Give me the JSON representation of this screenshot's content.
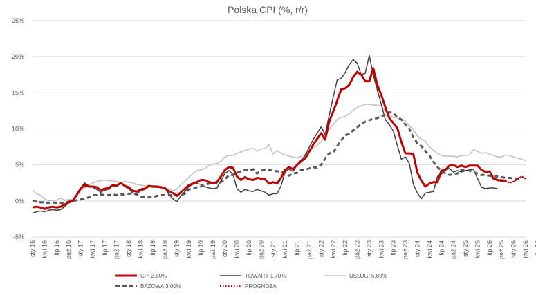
{
  "chart_data": {
    "type": "line",
    "title": "Polska CPI (%, r/r)",
    "xlabel": "",
    "ylabel": "",
    "ylim": [
      -5,
      25
    ],
    "y_ticks": [
      -5,
      0,
      5,
      10,
      15,
      20,
      25
    ],
    "y_tick_labels": [
      "-5%",
      "0%",
      "5%",
      "10%",
      "15%",
      "20%",
      "25%"
    ],
    "x_start": "2016-01",
    "x_months": 124,
    "x_tick_labels": [
      "sty 16",
      "kwi 16",
      "lip 16",
      "paź 16",
      "sty 17",
      "kwi 17",
      "lip 17",
      "paź 17",
      "sty 18",
      "kwi 18",
      "lip 18",
      "paź 18",
      "sty 19",
      "kwi 19",
      "lip 19",
      "paź 19",
      "sty 20",
      "kwi 20",
      "lip 20",
      "paź 20",
      "sty 21",
      "kwi 21",
      "lip 21",
      "paź 21",
      "sty 22",
      "kwi 22",
      "lip 22",
      "paź 22",
      "sty 23",
      "kwi 23",
      "lip 23",
      "paź 23",
      "sty 24",
      "kwi 24",
      "lip 24",
      "paź 24",
      "sty 25",
      "kwi 25",
      "lip 25",
      "paź 25",
      "sty 26",
      "kwi 26",
      "lip 26"
    ],
    "grid": true,
    "legend_position": "bottom",
    "colors": {
      "cpi": "#c00000",
      "towary": "#404040",
      "uslugi": "#bfbfbf",
      "bazowa": "#595959",
      "prognoza": "#c00000",
      "grid": "#d9d9d9",
      "text": "#595959"
    },
    "series": [
      {
        "name": "CPI 2,80%",
        "key": "cpi",
        "start_index": 0,
        "values": [
          -0.9,
          -0.8,
          -0.9,
          -1.1,
          -0.9,
          -0.8,
          -0.9,
          -0.8,
          -0.5,
          -0.2,
          0.0,
          0.8,
          1.7,
          2.2,
          2.0,
          2.0,
          1.9,
          1.5,
          1.7,
          1.8,
          2.2,
          2.1,
          2.5,
          2.1,
          1.9,
          1.4,
          1.3,
          1.6,
          1.7,
          2.1,
          2.0,
          2.0,
          1.9,
          1.8,
          1.3,
          1.1,
          0.7,
          1.2,
          1.7,
          2.2,
          2.4,
          2.6,
          2.9,
          2.9,
          2.6,
          2.5,
          2.6,
          3.4,
          4.3,
          4.7,
          4.6,
          3.4,
          2.9,
          3.3,
          3.0,
          2.9,
          3.2,
          3.1,
          3.0,
          2.4,
          2.6,
          2.4,
          3.2,
          4.3,
          4.7,
          4.4,
          5.0,
          5.5,
          5.9,
          6.8,
          7.8,
          8.6,
          9.4,
          8.5,
          11.0,
          12.4,
          13.9,
          15.5,
          15.6,
          16.1,
          17.2,
          17.9,
          17.5,
          16.6,
          16.6,
          18.4,
          16.1,
          14.7,
          13.0,
          11.5,
          10.8,
          10.1,
          8.2,
          6.6,
          6.6,
          6.5,
          3.9,
          2.8,
          2.0,
          2.4,
          2.6,
          2.6,
          4.2,
          4.3,
          4.9,
          5.0,
          4.7,
          4.9,
          4.7,
          4.9,
          4.9,
          4.9,
          4.3,
          4.0,
          4.1,
          3.1,
          2.9,
          2.8,
          2.8
        ]
      },
      {
        "name": "TOWARY 1,70%",
        "key": "towary",
        "start_index": 0,
        "values": [
          -1.7,
          -1.5,
          -1.4,
          -1.5,
          -1.3,
          -1.2,
          -1.3,
          -1.2,
          -0.8,
          -0.3,
          0.0,
          0.8,
          1.8,
          2.5,
          2.1,
          1.9,
          1.6,
          1.2,
          1.5,
          1.6,
          2.1,
          2.0,
          2.6,
          2.0,
          1.7,
          1.1,
          1.0,
          1.4,
          1.6,
          2.0,
          1.9,
          1.9,
          1.9,
          1.8,
          0.9,
          0.3,
          -0.1,
          0.7,
          1.3,
          2.0,
          2.3,
          2.4,
          2.3,
          2.0,
          1.8,
          1.7,
          1.8,
          2.8,
          3.8,
          4.2,
          3.7,
          1.7,
          1.2,
          1.6,
          1.4,
          1.3,
          1.6,
          1.4,
          1.2,
          0.8,
          1.0,
          1.0,
          2.1,
          4.0,
          4.4,
          4.1,
          5.0,
          5.7,
          6.3,
          7.4,
          8.5,
          9.4,
          10.3,
          9.2,
          11.9,
          14.4,
          16.8,
          17.0,
          17.8,
          18.9,
          19.6,
          19.1,
          17.5,
          17.7,
          20.2,
          17.5,
          15.4,
          13.4,
          11.3,
          10.6,
          9.7,
          7.7,
          5.8,
          6.1,
          5.2,
          2.3,
          1.1,
          0.3,
          1.1,
          1.2,
          1.3,
          3.4,
          3.7,
          4.3,
          4.5,
          4.0,
          4.2,
          4.0,
          4.2,
          4.3,
          4.4,
          3.1,
          1.9,
          1.7,
          1.8,
          1.8,
          1.7
        ]
      },
      {
        "name": "USŁUGI 5,60%",
        "key": "uslugi",
        "start_index": 0,
        "values": [
          1.5,
          1.0,
          0.8,
          0.3,
          0.0,
          0.1,
          0.1,
          0.4,
          0.1,
          0.2,
          0.2,
          0.8,
          1.4,
          1.8,
          2.2,
          2.5,
          2.7,
          2.8,
          2.9,
          2.8,
          2.8,
          2.7,
          2.6,
          2.7,
          2.6,
          2.5,
          2.3,
          2.2,
          2.1,
          2.1,
          2.1,
          2.1,
          2.0,
          1.8,
          1.6,
          1.4,
          1.6,
          2.3,
          2.7,
          3.3,
          3.8,
          4.2,
          4.3,
          4.5,
          4.9,
          5.1,
          5.2,
          5.5,
          6.1,
          6.3,
          6.3,
          6.6,
          6.8,
          7.0,
          7.2,
          7.3,
          6.9,
          7.2,
          7.3,
          7.8,
          6.5,
          7.0,
          6.6,
          6.4,
          6.2,
          6.1,
          6.0,
          6.2,
          6.5,
          7.1,
          7.4,
          7.7,
          8.2,
          9.3,
          10.0,
          10.6,
          11.3,
          11.6,
          11.7,
          12.1,
          12.6,
          13.0,
          13.2,
          13.4,
          13.4,
          13.3,
          13.3,
          13.2,
          12.5,
          12.0,
          11.6,
          11.5,
          11.3,
          11.1,
          10.4,
          9.9,
          9.0,
          8.6,
          8.3,
          7.5,
          7.0,
          6.6,
          6.3,
          6.2,
          6.2,
          6.2,
          6.1,
          6.3,
          6.3,
          6.4,
          7.1,
          6.9,
          6.6,
          6.7,
          6.5,
          6.3,
          6.1,
          6.1,
          6.4,
          6.3,
          6.1,
          5.9,
          5.8,
          5.6
        ]
      },
      {
        "name": "BAZOWA 3,00%",
        "key": "bazowa",
        "start_index": 0,
        "values": [
          0.0,
          -0.1,
          -0.2,
          -0.2,
          -0.3,
          -0.2,
          -0.3,
          -0.3,
          -0.2,
          -0.1,
          0.0,
          0.1,
          0.2,
          0.3,
          0.5,
          0.8,
          0.8,
          0.9,
          0.8,
          0.8,
          0.9,
          0.8,
          0.9,
          0.9,
          1.0,
          1.0,
          0.9,
          0.6,
          0.5,
          0.5,
          0.5,
          0.7,
          0.8,
          0.8,
          0.8,
          0.8,
          0.8,
          0.8,
          1.0,
          1.6,
          1.7,
          1.9,
          2.0,
          2.2,
          2.4,
          2.5,
          2.4,
          2.6,
          3.0,
          3.6,
          3.6,
          3.9,
          4.1,
          4.3,
          4.2,
          4.4,
          3.8,
          4.2,
          4.3,
          4.3,
          4.2,
          4.1,
          4.1,
          3.8,
          3.5,
          3.8,
          3.9,
          4.3,
          4.3,
          4.5,
          4.7,
          4.6,
          5.0,
          5.9,
          6.6,
          6.7,
          7.6,
          8.4,
          9.1,
          9.3,
          9.8,
          10.2,
          10.7,
          11.0,
          11.2,
          11.4,
          11.5,
          11.7,
          12.0,
          12.3,
          12.2,
          11.6,
          11.3,
          10.6,
          10.0,
          8.8,
          8.0,
          7.6,
          6.9,
          6.3,
          5.4,
          4.7,
          4.2,
          3.8,
          3.6,
          3.7,
          3.8,
          4.3,
          4.3,
          4.2,
          4.0,
          3.8,
          3.6,
          3.6,
          3.5,
          3.4,
          3.4,
          3.3,
          3.2,
          3.2,
          3.1,
          3.0
        ]
      },
      {
        "name": "PROGNOZA",
        "key": "prognoza",
        "start_index": 116,
        "values": [
          2.8,
          3.0,
          2.8,
          2.5,
          2.7,
          3.0,
          3.4,
          3.1
        ]
      }
    ]
  }
}
